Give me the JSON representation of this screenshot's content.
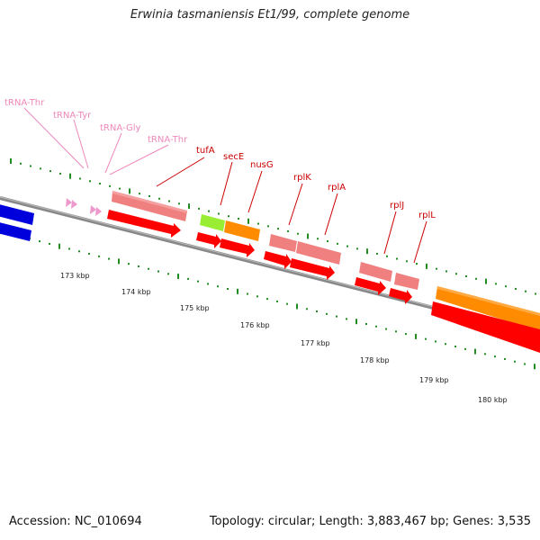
{
  "title": "Erwinia tasmaniensis Et1/99, complete genome",
  "footer": {
    "accession": "Accession: NC_010694",
    "summary": "Topology: circular; Length: 3,883,467 bp; Genes: 3,535"
  },
  "ticks": [
    "173 kbp",
    "174 kbp",
    "175 kbp",
    "176 kbp",
    "177 kbp",
    "178 kbp",
    "179 kbp",
    "180 kbp"
  ],
  "trna_labels": [
    "tRNA-Thr",
    "tRNA-Tyr",
    "tRNA-Gly",
    "tRNA-Thr"
  ],
  "gene_labels": [
    "tufA",
    "secE",
    "nusG",
    "rplK",
    "rplA",
    "rplJ",
    "rplL"
  ],
  "colors": {
    "cds": "#ff0000",
    "cog_translation": "#f08080",
    "cog_transcription": "#ff8c00",
    "cog_secretion": "#99ee33",
    "cog_blue": "#0000dd",
    "trna": "#ee99cc",
    "tick": "#228b22",
    "backbone": "#808080",
    "label_gene": "#cc0000",
    "label_trna": "#ee88bb"
  }
}
